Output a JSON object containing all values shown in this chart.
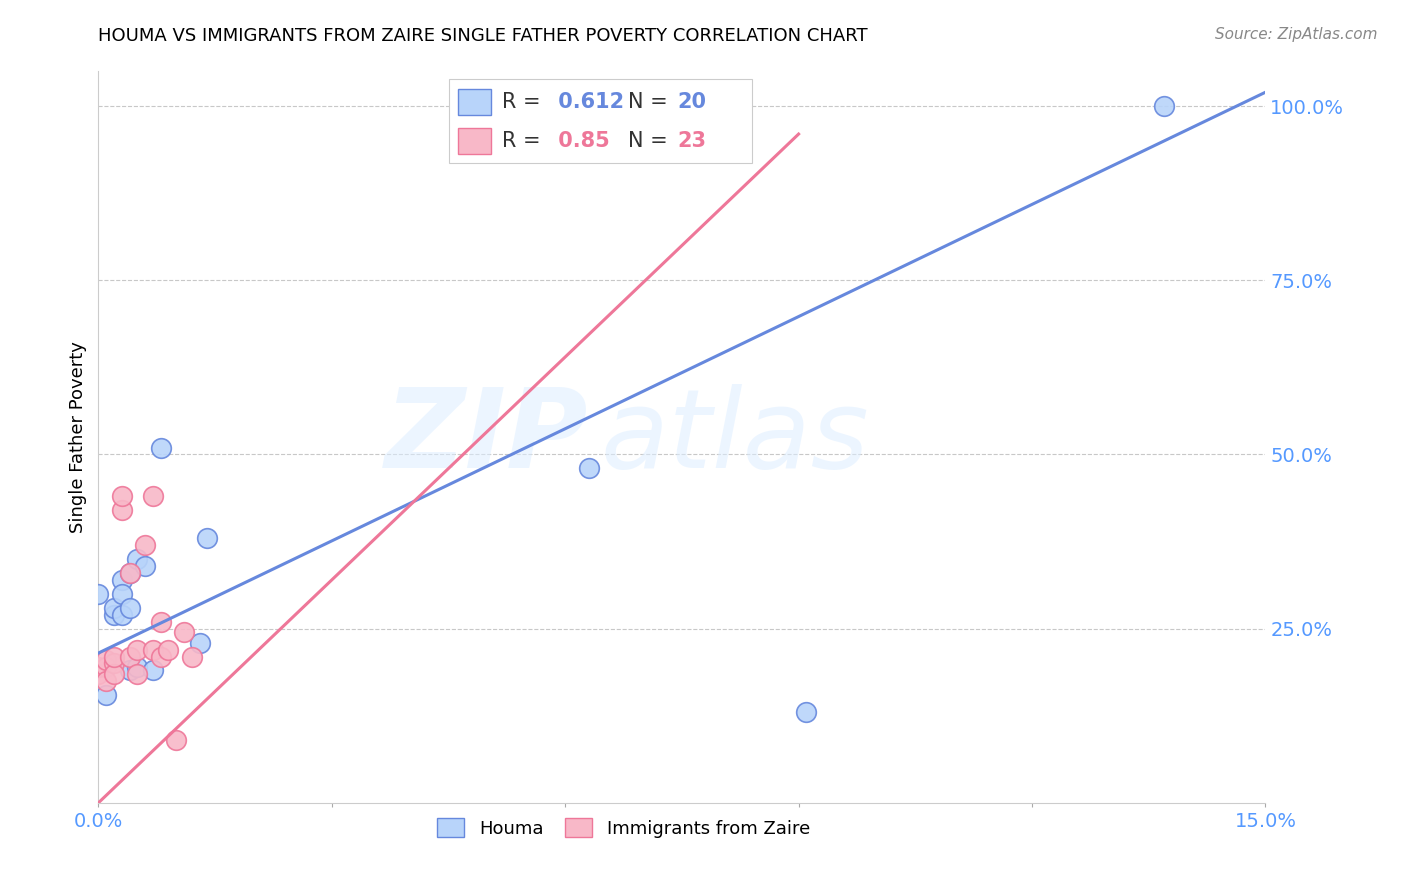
{
  "title": "HOUMA VS IMMIGRANTS FROM ZAIRE SINGLE FATHER POVERTY CORRELATION CHART",
  "source": "Source: ZipAtlas.com",
  "ylabel": "Single Father Poverty",
  "xlim": [
    0.0,
    0.15
  ],
  "ylim": [
    0.0,
    1.05
  ],
  "yticks": [
    0.25,
    0.5,
    0.75,
    1.0
  ],
  "ytick_labels": [
    "25.0%",
    "50.0%",
    "75.0%",
    "100.0%"
  ],
  "xticks": [
    0.0,
    0.03,
    0.06,
    0.09,
    0.12,
    0.15
  ],
  "xtick_labels": [
    "0.0%",
    "",
    "",
    "",
    "",
    "15.0%"
  ],
  "houma_scatter_x": [
    0.001,
    0.002,
    0.002,
    0.003,
    0.003,
    0.003,
    0.004,
    0.004,
    0.004,
    0.005,
    0.005,
    0.006,
    0.007,
    0.008,
    0.013,
    0.014,
    0.063,
    0.091,
    0.137
  ],
  "houma_scatter_y": [
    0.155,
    0.27,
    0.28,
    0.27,
    0.32,
    0.3,
    0.19,
    0.33,
    0.28,
    0.195,
    0.35,
    0.34,
    0.19,
    0.51,
    0.23,
    0.38,
    0.48,
    0.13,
    1.0
  ],
  "houma_extra_x": [
    0.0
  ],
  "houma_extra_y": [
    0.3
  ],
  "zaire_scatter_x": [
    0.0,
    0.0,
    0.001,
    0.001,
    0.001,
    0.002,
    0.002,
    0.002,
    0.003,
    0.003,
    0.004,
    0.004,
    0.005,
    0.005,
    0.006,
    0.007,
    0.007,
    0.008,
    0.008,
    0.009,
    0.01,
    0.011,
    0.012
  ],
  "zaire_scatter_y": [
    0.185,
    0.195,
    0.195,
    0.175,
    0.205,
    0.2,
    0.185,
    0.21,
    0.42,
    0.44,
    0.33,
    0.21,
    0.22,
    0.185,
    0.37,
    0.44,
    0.22,
    0.21,
    0.26,
    0.22,
    0.09,
    0.245,
    0.21
  ],
  "houma_R": 0.612,
  "houma_N": 20,
  "zaire_R": 0.85,
  "zaire_N": 23,
  "houma_color": "#b8d4fa",
  "houma_line_color": "#6688dd",
  "zaire_color": "#f8b8c8",
  "zaire_line_color": "#ee7799",
  "tick_color": "#5599ff",
  "grid_color": "#c8c8c8",
  "blue_line_x0": 0.0,
  "blue_line_y0": 0.215,
  "blue_line_x1": 0.15,
  "blue_line_y1": 1.02,
  "pink_line_x0": 0.0,
  "pink_line_y0": 0.0,
  "pink_line_x1": 0.09,
  "pink_line_y1": 0.96
}
